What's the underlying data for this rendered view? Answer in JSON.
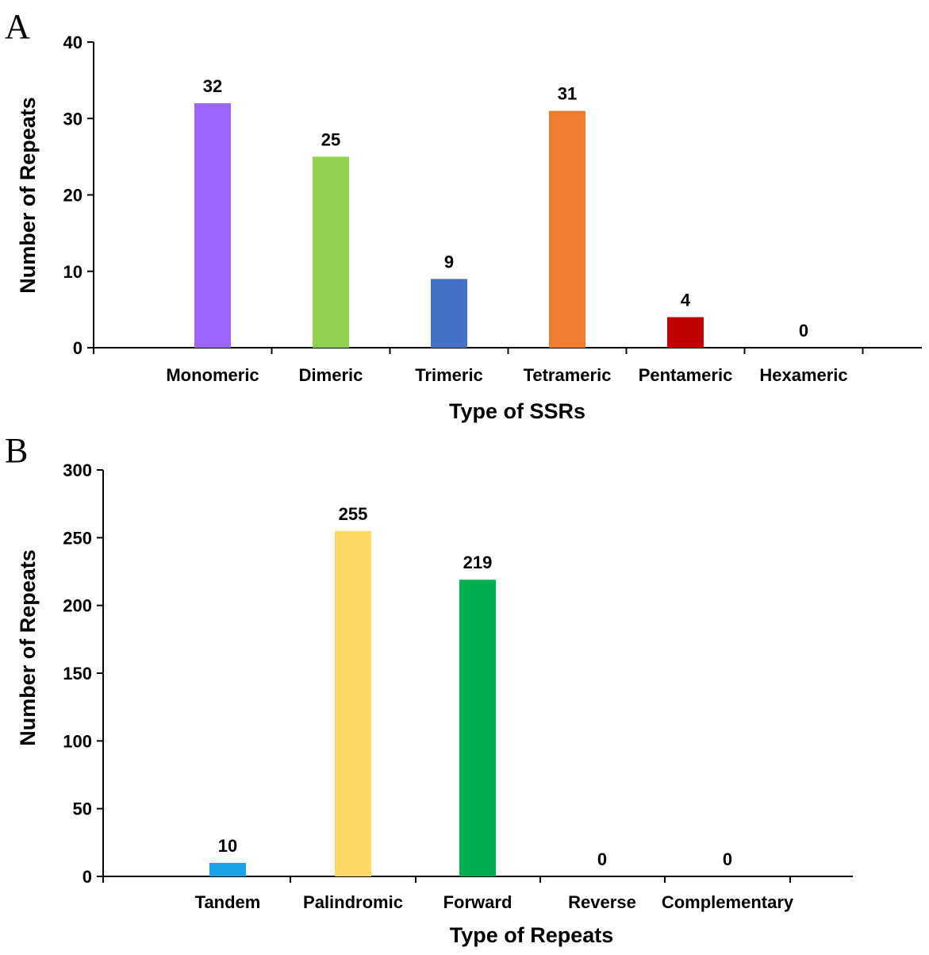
{
  "chart_data": [
    {
      "panel_label": "A",
      "type": "bar",
      "categories": [
        "Monomeric",
        "Dimeric",
        "Trimeric",
        "Tetrameric",
        "Pentameric",
        "Hexameric"
      ],
      "values": [
        32,
        25,
        9,
        31,
        4,
        0
      ],
      "value_labels": [
        "32",
        "25",
        "9",
        "31",
        "4",
        "0"
      ],
      "colors": [
        "#9966FF",
        "#92D050",
        "#4472C4",
        "#ED7D31",
        "#C00000",
        "#000000"
      ],
      "xlabel": "Type of SSRs",
      "ylabel": "Number of Repeats",
      "ylim": [
        0,
        40
      ],
      "yticks": [
        "0",
        "10",
        "20",
        "30",
        "40"
      ],
      "ytick_values": [
        0,
        10,
        20,
        30,
        40
      ],
      "grid": false
    },
    {
      "panel_label": "B",
      "type": "bar",
      "categories": [
        "Tandem",
        "Palindromic",
        "Forward",
        "Reverse",
        "Complementary"
      ],
      "values": [
        10,
        255,
        219,
        0,
        0
      ],
      "value_labels": [
        "10",
        "255",
        "219",
        "0",
        "0"
      ],
      "colors": [
        "#1AA3E8",
        "#FFD966",
        "#00B050",
        "#000000",
        "#000000"
      ],
      "xlabel": "Type of Repeats",
      "ylabel": "Number of Repeats",
      "ylim": [
        0,
        300
      ],
      "yticks": [
        "0",
        "50",
        "100",
        "150",
        "200",
        "250",
        "300"
      ],
      "ytick_values": [
        0,
        50,
        100,
        150,
        200,
        250,
        300
      ],
      "grid": false
    }
  ]
}
